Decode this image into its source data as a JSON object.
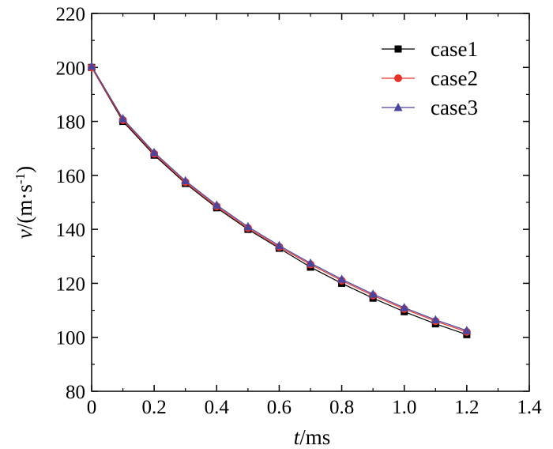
{
  "chart_data": {
    "type": "line",
    "x": [
      0,
      0.1,
      0.2,
      0.3,
      0.4,
      0.5,
      0.6,
      0.7,
      0.8,
      0.9,
      1.0,
      1.1,
      1.2
    ],
    "series": [
      {
        "name": "case1",
        "color": "#000000",
        "marker": "square",
        "values": [
          200,
          180,
          167.5,
          157,
          148,
          140,
          133,
          126,
          120,
          114.5,
          109.5,
          105,
          101
        ]
      },
      {
        "name": "case2",
        "color": "#e8332a",
        "marker": "circle",
        "values": [
          200,
          180.5,
          168,
          157.5,
          148.5,
          140.5,
          133.5,
          127,
          121,
          115.5,
          110.5,
          106,
          102
        ]
      },
      {
        "name": "case3",
        "color": "#4a46a0",
        "marker": "triangle",
        "values": [
          200.5,
          181,
          168.5,
          158,
          149,
          141,
          134,
          127.5,
          121.5,
          116,
          111,
          106.5,
          102.5
        ]
      }
    ],
    "xlabel_italic": "t",
    "xlabel_unit": "/ms",
    "ylabel_italic": "v",
    "ylabel_unit": "/(m·s",
    "ylabel_sup": "-1",
    "ylabel_close": ")",
    "xlim": [
      0,
      1.4
    ],
    "ylim": [
      80,
      220
    ],
    "xticks": [
      "0",
      "0.2",
      "0.4",
      "0.6",
      "0.8",
      "1.0",
      "1.2",
      "1.4"
    ],
    "yticks": [
      "80",
      "100",
      "120",
      "140",
      "160",
      "180",
      "200",
      "220"
    ],
    "grid": false,
    "legend_position": "top-right"
  }
}
